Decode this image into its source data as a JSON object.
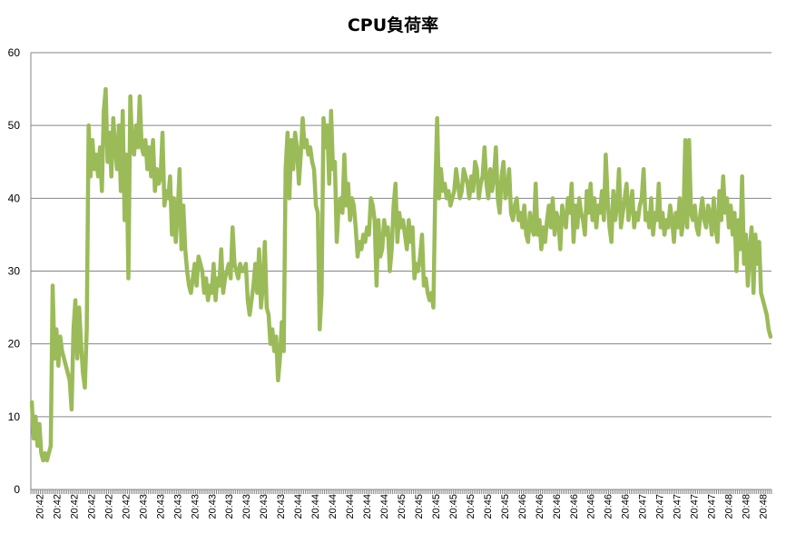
{
  "chart_data": {
    "type": "line",
    "title": "CPU負荷率",
    "xlabel": "",
    "ylabel": "",
    "ylim": [
      0,
      60
    ],
    "yticks": [
      0,
      10,
      20,
      30,
      40,
      50,
      60
    ],
    "grid": true,
    "legend": "none",
    "colors": {
      "series": "#9bbb59",
      "grid": "#868686",
      "axis": "#868686"
    },
    "x_ticks": [
      "20:42",
      "20:42",
      "20:42",
      "20:42",
      "20:42",
      "20:42",
      "20:43",
      "20:43",
      "20:43",
      "20:43",
      "20:43",
      "20:43",
      "20:43",
      "20:43",
      "20:43",
      "20:44",
      "20:44",
      "20:44",
      "20:44",
      "20:44",
      "20:44",
      "20:45",
      "20:45",
      "20:45",
      "20:45",
      "20:45",
      "20:45",
      "20:45",
      "20:46",
      "20:46",
      "20:46",
      "20:46",
      "20:46",
      "20:46",
      "20:46",
      "20:47",
      "20:47",
      "20:47",
      "20:47",
      "20:47",
      "20:48",
      "20:48",
      "20:48"
    ],
    "series": [
      {
        "values": [
          12,
          7,
          10,
          6,
          9,
          5,
          4,
          5,
          4,
          5,
          6,
          28,
          18,
          22,
          17,
          21,
          19,
          18,
          17,
          16,
          15,
          11,
          22,
          26,
          18,
          25,
          20,
          16,
          14,
          22,
          50,
          43,
          48,
          44,
          46,
          43,
          47,
          41,
          52,
          55,
          45,
          49,
          43,
          51,
          47,
          44,
          50,
          41,
          52,
          37,
          46,
          29,
          54,
          47,
          46,
          50,
          47,
          54,
          47,
          46,
          48,
          44,
          47,
          43,
          48,
          41,
          44,
          42,
          43,
          49,
          39,
          41,
          40,
          43,
          35,
          40,
          34,
          38,
          44,
          33,
          39,
          33,
          30,
          28,
          27,
          29,
          31,
          28,
          32,
          31,
          30,
          27,
          29,
          26,
          28,
          27,
          31,
          26,
          29,
          28,
          33,
          27,
          29,
          30,
          31,
          29,
          36,
          31,
          30,
          29,
          31,
          30,
          30,
          31,
          26,
          24,
          26,
          28,
          31,
          27,
          33,
          25,
          28,
          34,
          25,
          24,
          20,
          22,
          19,
          21,
          15,
          18,
          23,
          19,
          44,
          49,
          40,
          48,
          44,
          49,
          47,
          42,
          46,
          51,
          47,
          48,
          46,
          47,
          45,
          44,
          39,
          38,
          22,
          27,
          51,
          47,
          50,
          42,
          52,
          44,
          45,
          34,
          39,
          40,
          38,
          46,
          39,
          42,
          37,
          40,
          39,
          36,
          32,
          34,
          33,
          35,
          34,
          36,
          35,
          40,
          39,
          37,
          28,
          37,
          32,
          33,
          37,
          35,
          36,
          30,
          33,
          39,
          42,
          34,
          38,
          36,
          37,
          35,
          33,
          37,
          34,
          36,
          29,
          31,
          30,
          32,
          35,
          28,
          29,
          27,
          26,
          27,
          25,
          41,
          51,
          40,
          44,
          41,
          42,
          40,
          41,
          39,
          40,
          41,
          44,
          42,
          40,
          41,
          44,
          43,
          42,
          40,
          43,
          41,
          45,
          44,
          40,
          42,
          43,
          47,
          42,
          40,
          44,
          41,
          43,
          47,
          40,
          38,
          43,
          45,
          40,
          41,
          44,
          38,
          37,
          39,
          40,
          37,
          38,
          36,
          39,
          35,
          34,
          38,
          36,
          35,
          42,
          35,
          37,
          33,
          36,
          34,
          37,
          39,
          36,
          40,
          35,
          38,
          37,
          33,
          39,
          37,
          36,
          40,
          38,
          42,
          34,
          39,
          36,
          40,
          38,
          37,
          35,
          41,
          38,
          42,
          37,
          40,
          36,
          39,
          38,
          41,
          37,
          46,
          40,
          36,
          34,
          41,
          37,
          39,
          44,
          36,
          38,
          40,
          42,
          37,
          39,
          41,
          36,
          38,
          37,
          39,
          40,
          44,
          37,
          38,
          36,
          40,
          35,
          38,
          37,
          42,
          36,
          38,
          35,
          37,
          36,
          39,
          37,
          34,
          38,
          36,
          40,
          35,
          37,
          48,
          36,
          48,
          38,
          37,
          39,
          36,
          35,
          38,
          40,
          37,
          36,
          39,
          38,
          35,
          40,
          36,
          34,
          41,
          37,
          43,
          38,
          40,
          36,
          39,
          35,
          38,
          30,
          37,
          33,
          43,
          31,
          35,
          28,
          33,
          36,
          27,
          35,
          31,
          34,
          27,
          26,
          25,
          24,
          22,
          21
        ]
      }
    ]
  }
}
